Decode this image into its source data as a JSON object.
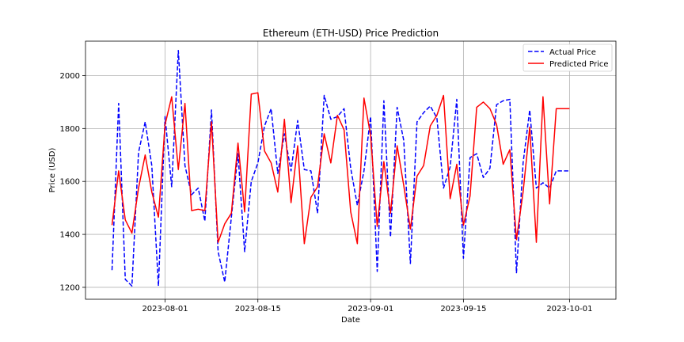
{
  "chart_data": {
    "type": "line",
    "title": "Ethereum (ETH-USD) Price Prediction",
    "xlabel": "Date",
    "ylabel": "Price (USD)",
    "x_range": [
      "2023-07-20",
      "2023-10-08"
    ],
    "ylim": [
      1155,
      2130
    ],
    "x_ticks": [
      "2023-08-01",
      "2023-08-15",
      "2023-09-01",
      "2023-09-15",
      "2023-10-01"
    ],
    "y_ticks": [
      1200,
      1400,
      1600,
      1800,
      2000
    ],
    "grid": true,
    "legend_position": "top-right",
    "x": [
      "2023-07-24",
      "2023-07-25",
      "2023-07-26",
      "2023-07-27",
      "2023-07-28",
      "2023-07-29",
      "2023-07-30",
      "2023-07-31",
      "2023-08-01",
      "2023-08-02",
      "2023-08-03",
      "2023-08-04",
      "2023-08-05",
      "2023-08-06",
      "2023-08-07",
      "2023-08-08",
      "2023-08-09",
      "2023-08-10",
      "2023-08-11",
      "2023-08-12",
      "2023-08-13",
      "2023-08-14",
      "2023-08-15",
      "2023-08-16",
      "2023-08-17",
      "2023-08-18",
      "2023-08-19",
      "2023-08-20",
      "2023-08-21",
      "2023-08-22",
      "2023-08-23",
      "2023-08-24",
      "2023-08-25",
      "2023-08-26",
      "2023-08-27",
      "2023-08-28",
      "2023-08-29",
      "2023-08-30",
      "2023-08-31",
      "2023-09-01",
      "2023-09-02",
      "2023-09-03",
      "2023-09-04",
      "2023-09-05",
      "2023-09-06",
      "2023-09-07",
      "2023-09-08",
      "2023-09-09",
      "2023-09-10",
      "2023-09-11",
      "2023-09-12",
      "2023-09-13",
      "2023-09-14",
      "2023-09-15",
      "2023-09-16",
      "2023-09-17",
      "2023-09-18",
      "2023-09-19",
      "2023-09-20",
      "2023-09-21",
      "2023-09-22",
      "2023-09-23",
      "2023-09-24",
      "2023-09-25",
      "2023-09-26",
      "2023-09-27",
      "2023-09-28",
      "2023-09-29",
      "2023-09-30",
      "2023-10-01"
    ],
    "series": [
      {
        "name": "Actual Price",
        "color": "#0000ff",
        "style": "dashed",
        "values": [
          1265,
          1895,
          1230,
          1205,
          1710,
          1825,
          1660,
          1205,
          1845,
          1580,
          2095,
          1660,
          1550,
          1575,
          1450,
          1870,
          1335,
          1220,
          1465,
          1705,
          1335,
          1600,
          1670,
          1810,
          1875,
          1630,
          1780,
          1640,
          1830,
          1645,
          1640,
          1480,
          1925,
          1835,
          1845,
          1875,
          1650,
          1510,
          1640,
          1845,
          1260,
          1905,
          1390,
          1880,
          1755,
          1290,
          1825,
          1860,
          1885,
          1840,
          1575,
          1655,
          1910,
          1310,
          1690,
          1705,
          1615,
          1650,
          1890,
          1905,
          1910,
          1255,
          1670,
          1870,
          1575,
          1595,
          1575,
          1640,
          1640,
          1640
        ]
      },
      {
        "name": "Predicted Price",
        "color": "#ff0000",
        "style": "solid",
        "values": [
          1435,
          1640,
          1455,
          1405,
          1575,
          1700,
          1560,
          1465,
          1815,
          1920,
          1645,
          1895,
          1490,
          1495,
          1490,
          1825,
          1370,
          1440,
          1480,
          1745,
          1485,
          1930,
          1935,
          1715,
          1670,
          1560,
          1835,
          1520,
          1735,
          1365,
          1540,
          1580,
          1780,
          1670,
          1850,
          1795,
          1485,
          1365,
          1915,
          1775,
          1430,
          1675,
          1480,
          1735,
          1585,
          1420,
          1620,
          1660,
          1810,
          1850,
          1925,
          1535,
          1665,
          1435,
          1545,
          1880,
          1900,
          1875,
          1815,
          1665,
          1720,
          1380,
          1560,
          1805,
          1370,
          1920,
          1515,
          1875,
          1875,
          1875
        ]
      }
    ]
  }
}
